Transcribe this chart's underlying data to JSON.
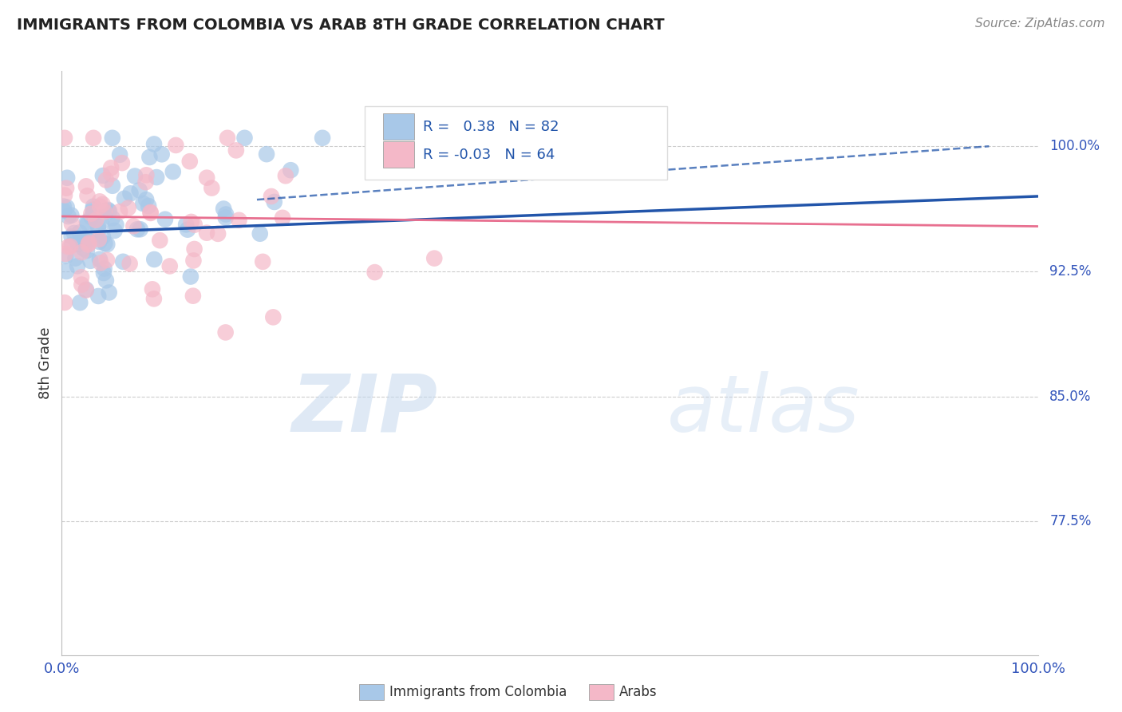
{
  "title": "IMMIGRANTS FROM COLOMBIA VS ARAB 8TH GRADE CORRELATION CHART",
  "source": "Source: ZipAtlas.com",
  "ylabel": "8th Grade",
  "legend_label1": "Immigrants from Colombia",
  "legend_label2": "Arabs",
  "R1": 0.38,
  "N1": 82,
  "R2": -0.03,
  "N2": 64,
  "color_blue": "#a8c8e8",
  "color_pink": "#f4b8c8",
  "line_blue": "#2255aa",
  "line_pink": "#e87090",
  "y_ticks": [
    0.775,
    0.85,
    0.925,
    1.0
  ],
  "y_tick_labels": [
    "77.5%",
    "85.0%",
    "92.5%",
    "100.0%"
  ],
  "ylim": [
    0.695,
    1.045
  ],
  "xlim": [
    0.0,
    1.0
  ],
  "watermark_zip": "ZIP",
  "watermark_atlas": "atlas"
}
